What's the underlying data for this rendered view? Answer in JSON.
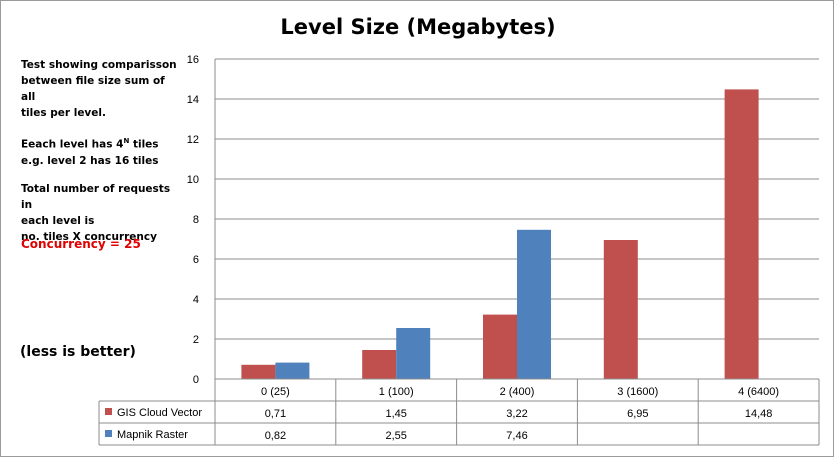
{
  "chart_data": {
    "type": "bar",
    "title": "Level Size  (Megabytes)",
    "categories": [
      "0 (25)",
      "1 (100)",
      "2 (400)",
      "3 (1600)",
      "4  (6400)"
    ],
    "series": [
      {
        "name": "GIS Cloud Vector",
        "color": "#c0504d",
        "values": [
          0.71,
          1.45,
          3.22,
          6.95,
          14.48
        ],
        "table_labels": [
          "0,71",
          "1,45",
          "3,22",
          "6,95",
          "14,48"
        ]
      },
      {
        "name": "Mapnik Raster",
        "color": "#4f81bd",
        "values": [
          0.82,
          2.55,
          7.46,
          null,
          null
        ],
        "table_labels": [
          "0,82",
          "2,55",
          "7,46",
          "",
          ""
        ]
      }
    ],
    "ylim": [
      0,
      16
    ],
    "yticks": [
      0,
      2,
      4,
      6,
      8,
      10,
      12,
      14,
      16
    ],
    "grid": true,
    "legend": "data table"
  },
  "notes": {
    "line1a": "Test  showing comparisson",
    "line1b": "between  file size sum of all",
    "line1c": "tiles per level.",
    "line2a_pre": "Eeach level has 4",
    "line2a_sup": "N",
    "line2a_post": " tiles",
    "line2b": "e.g. level 2 has 16 tiles",
    "line3a": "Total number of requests in",
    "line3b": "each level is",
    "line3c": "no. tiles X concurrency",
    "concurrency": "Concurrency = 25",
    "less_is_better": "(less is better)"
  }
}
